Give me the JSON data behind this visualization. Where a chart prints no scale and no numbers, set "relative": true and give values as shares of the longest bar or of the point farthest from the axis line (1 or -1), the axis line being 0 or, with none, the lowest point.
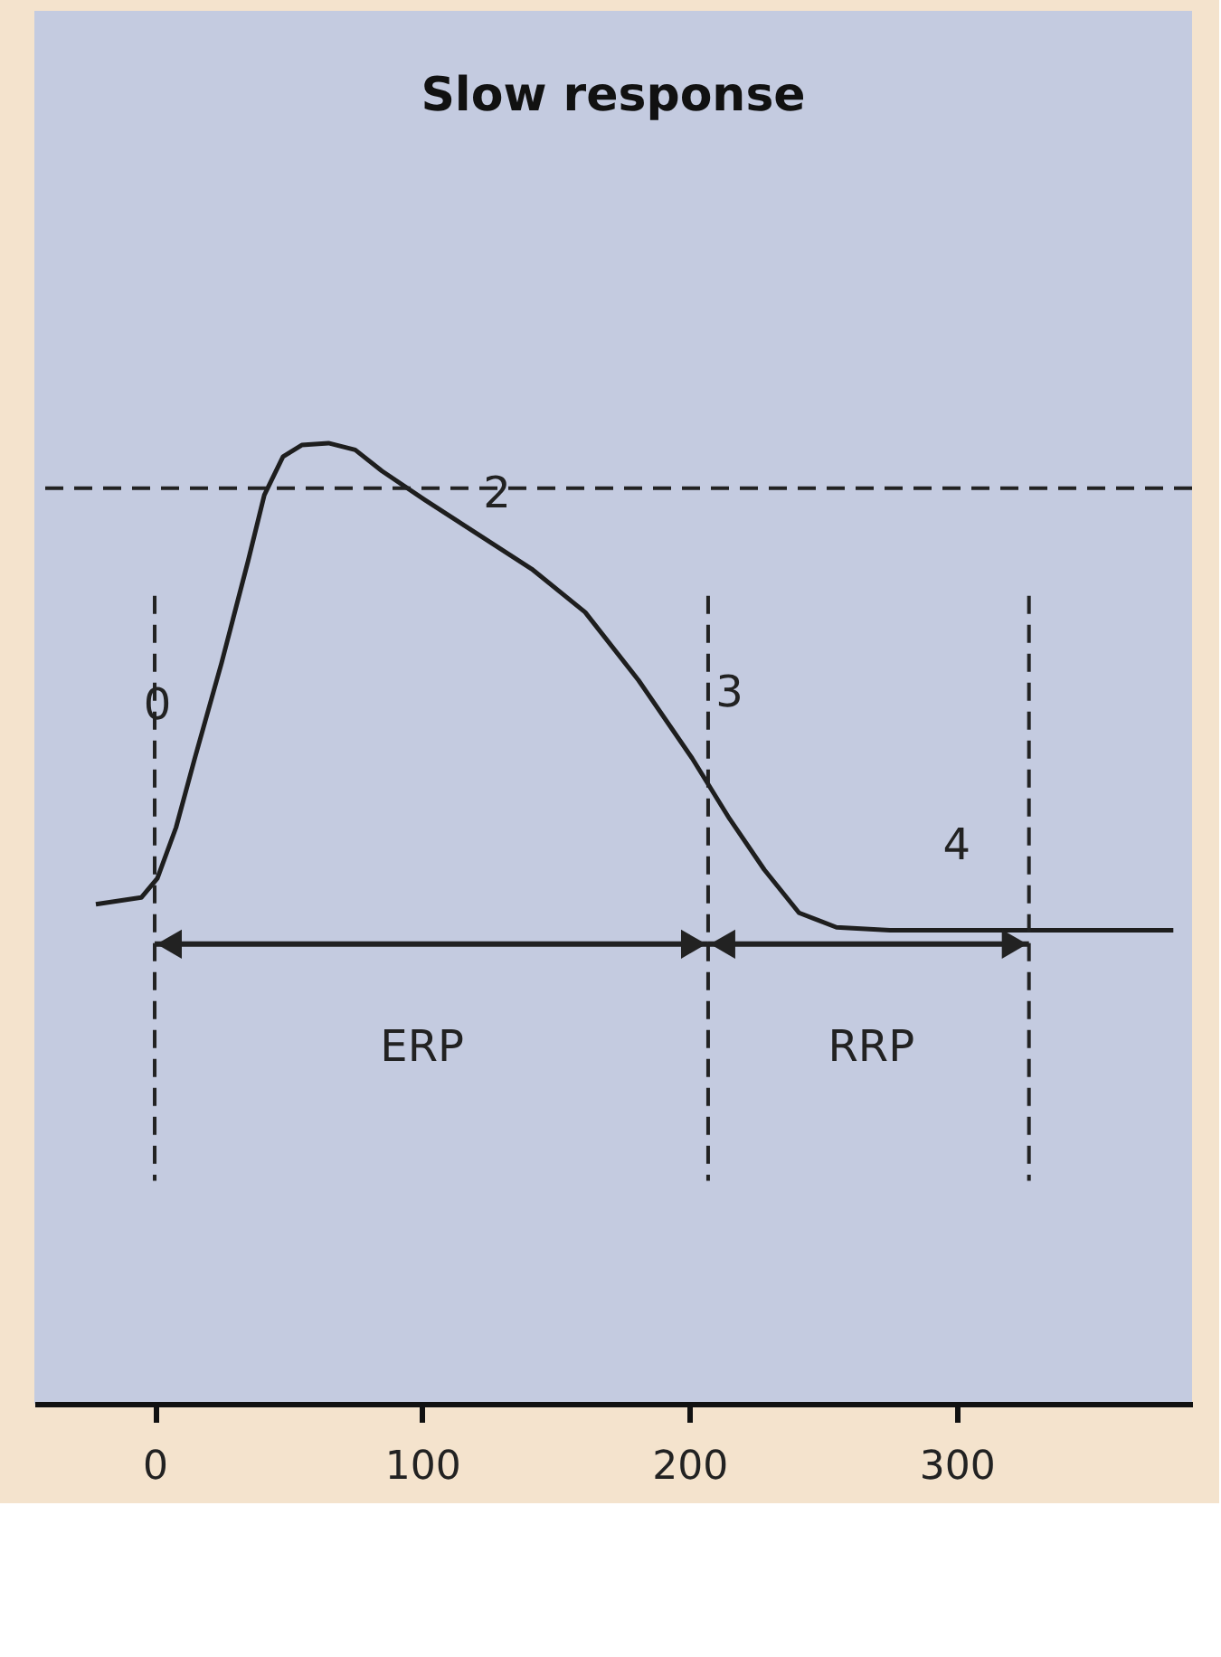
{
  "chart_data": {
    "type": "line",
    "title": "Slow response",
    "relative": true,
    "x": [
      -22,
      -5,
      1,
      8,
      15,
      25,
      35,
      41,
      48,
      55,
      65,
      75,
      85,
      101,
      121,
      141,
      161,
      181,
      201,
      215,
      228,
      241,
      255,
      275,
      328,
      381
    ],
    "series": [
      {
        "color": "#1e1e1e",
        "values": [
          0.52,
          0.527,
          0.547,
          0.6,
          0.672,
          0.771,
          0.878,
          0.946,
          0.986,
          0.998,
          1.0,
          0.993,
          0.971,
          0.941,
          0.905,
          0.869,
          0.824,
          0.753,
          0.672,
          0.609,
          0.556,
          0.511,
          0.496,
          0.493,
          0.493,
          0.493
        ]
      }
    ],
    "xlim": [
      -45,
      388
    ],
    "xticks": [
      0,
      100,
      200,
      300
    ],
    "ref_lines": [
      {
        "axis": "y",
        "value": 0.953,
        "line_style": "dashed"
      },
      {
        "axis": "x",
        "value": 0,
        "line_style": "dashed"
      },
      {
        "axis": "x",
        "value": 207,
        "line_style": "dashed"
      },
      {
        "axis": "x",
        "value": 327,
        "line_style": "dashed"
      }
    ],
    "annotations": [
      {
        "text": "0",
        "x": 1,
        "y": 0.726
      },
      {
        "text": "2",
        "x": 128,
        "y": 0.946
      },
      "3",
      "4",
      "ERP",
      "RRP"
    ],
    "marker": "none",
    "line_style": "solid",
    "grid": false
  }
}
